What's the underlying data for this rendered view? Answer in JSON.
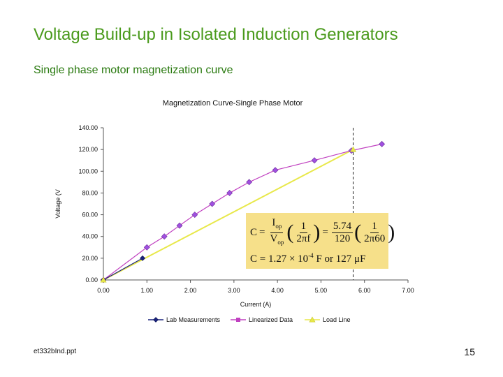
{
  "slide": {
    "title": "Voltage Build-up in Isolated Induction Generators",
    "subtitle": "Single phase motor magnetization curve",
    "footer_file": "et332bInd.ppt",
    "page_number": "15"
  },
  "formula": {
    "lhs": "C",
    "eq": "=",
    "i_num": "I",
    "i_sub": "op",
    "v_den": "V",
    "v_sub": "op",
    "one": "1",
    "two_pi_f": "2πf",
    "num_val": "5.74",
    "den_val": "120",
    "two_pi_60": "2π60",
    "result": "C = 1.27 × 10",
    "exponent": "-4",
    "result_tail": " F  or 127 μF"
  },
  "chart_data": {
    "type": "line",
    "title": "Magnetization Curve-Single Phase Motor",
    "xlabel": "Current (A)",
    "ylabel": "Voltage (V",
    "xlim": [
      0,
      7
    ],
    "ylim": [
      0,
      140
    ],
    "x_ticks": [
      "0.00",
      "1.00",
      "2.00",
      "3.00",
      "4.00",
      "5.00",
      "6.00",
      "7.00"
    ],
    "y_ticks": [
      "0.00",
      "20.00",
      "40.00",
      "60.00",
      "80.00",
      "100.00",
      "120.00",
      "140.00"
    ],
    "grid": false,
    "legend_position": "bottom",
    "series": [
      {
        "name": "Lab Measurements",
        "color": "#1a237e",
        "marker": "diamond",
        "x": [
          0,
          0.9
        ],
        "y": [
          0,
          20
        ]
      },
      {
        "name": "Linearized Data",
        "color": "#c040c0",
        "marker": "square-diamond",
        "x": [
          0,
          1.0,
          1.4,
          1.75,
          2.1,
          2.5,
          2.9,
          3.35,
          3.95,
          4.85,
          5.7,
          6.4
        ],
        "y": [
          0,
          30,
          40,
          50,
          60,
          70,
          80,
          90,
          101,
          110,
          119,
          125
        ]
      },
      {
        "name": "Load Line",
        "color": "#e8e84a",
        "marker": "triangle",
        "x": [
          0,
          5.74
        ],
        "y": [
          0,
          120
        ]
      }
    ],
    "marker_fill": "#a050e0",
    "vline": {
      "x": 5.74,
      "style": "dashed",
      "color": "#222222"
    }
  }
}
